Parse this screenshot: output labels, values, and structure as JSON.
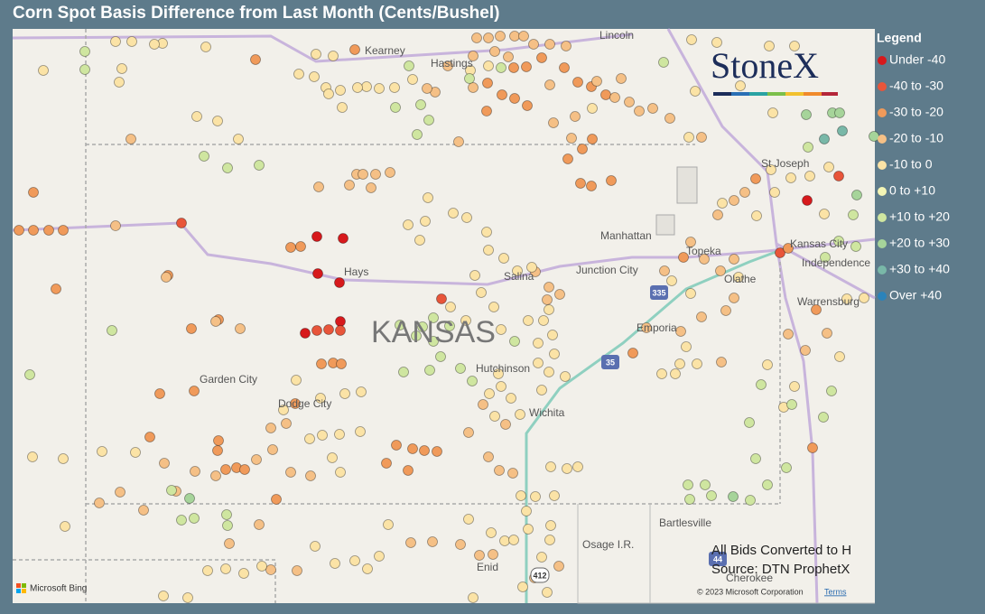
{
  "title": "Corn Spot Basis Difference from Last Month (Cents/Bushel)",
  "legend": {
    "title": "Legend",
    "items": [
      {
        "label": "Under -40",
        "color": "#d7191c"
      },
      {
        "label": "-40 to -30",
        "color": "#e8553a"
      },
      {
        "label": "-30 to -20",
        "color": "#f09a5a"
      },
      {
        "label": "-20 to -10",
        "color": "#f5c086"
      },
      {
        "label": "-10 to 0",
        "color": "#fbe3a6"
      },
      {
        "label": "0 to +10",
        "color": "#f3f5b5"
      },
      {
        "label": "+10 to +20",
        "color": "#cfe6a0"
      },
      {
        "label": "+20 to +30",
        "color": "#a6d49a"
      },
      {
        "label": "+30 to +40",
        "color": "#79b8a8"
      },
      {
        "label": "Over +40",
        "color": "#2b83ba"
      }
    ]
  },
  "map": {
    "labels": [
      "Kearney",
      "Hastings",
      "Lincoln",
      "St Joseph",
      "Manhattan",
      "Topeka",
      "Kansas City",
      "Independence",
      "Hays",
      "Salina",
      "Junction City",
      "Olathe",
      "Warrensburg",
      "KANSAS",
      "Emporia",
      "Hutchinson",
      "Garden City",
      "Dodge City",
      "Wichita",
      "Bartlesville",
      "Osage I.R.",
      "Enid",
      "Cherokee"
    ],
    "shields": [
      "335",
      "35",
      "412",
      "44"
    ]
  },
  "logo": "StoneX",
  "notes": [
    "All Bids Converted to H",
    "Source: DTN ProphetX"
  ],
  "attribution": {
    "provider": "Microsoft Bing",
    "copyright": "© 2023 Microsoft Corporation",
    "terms": "Terms"
  }
}
